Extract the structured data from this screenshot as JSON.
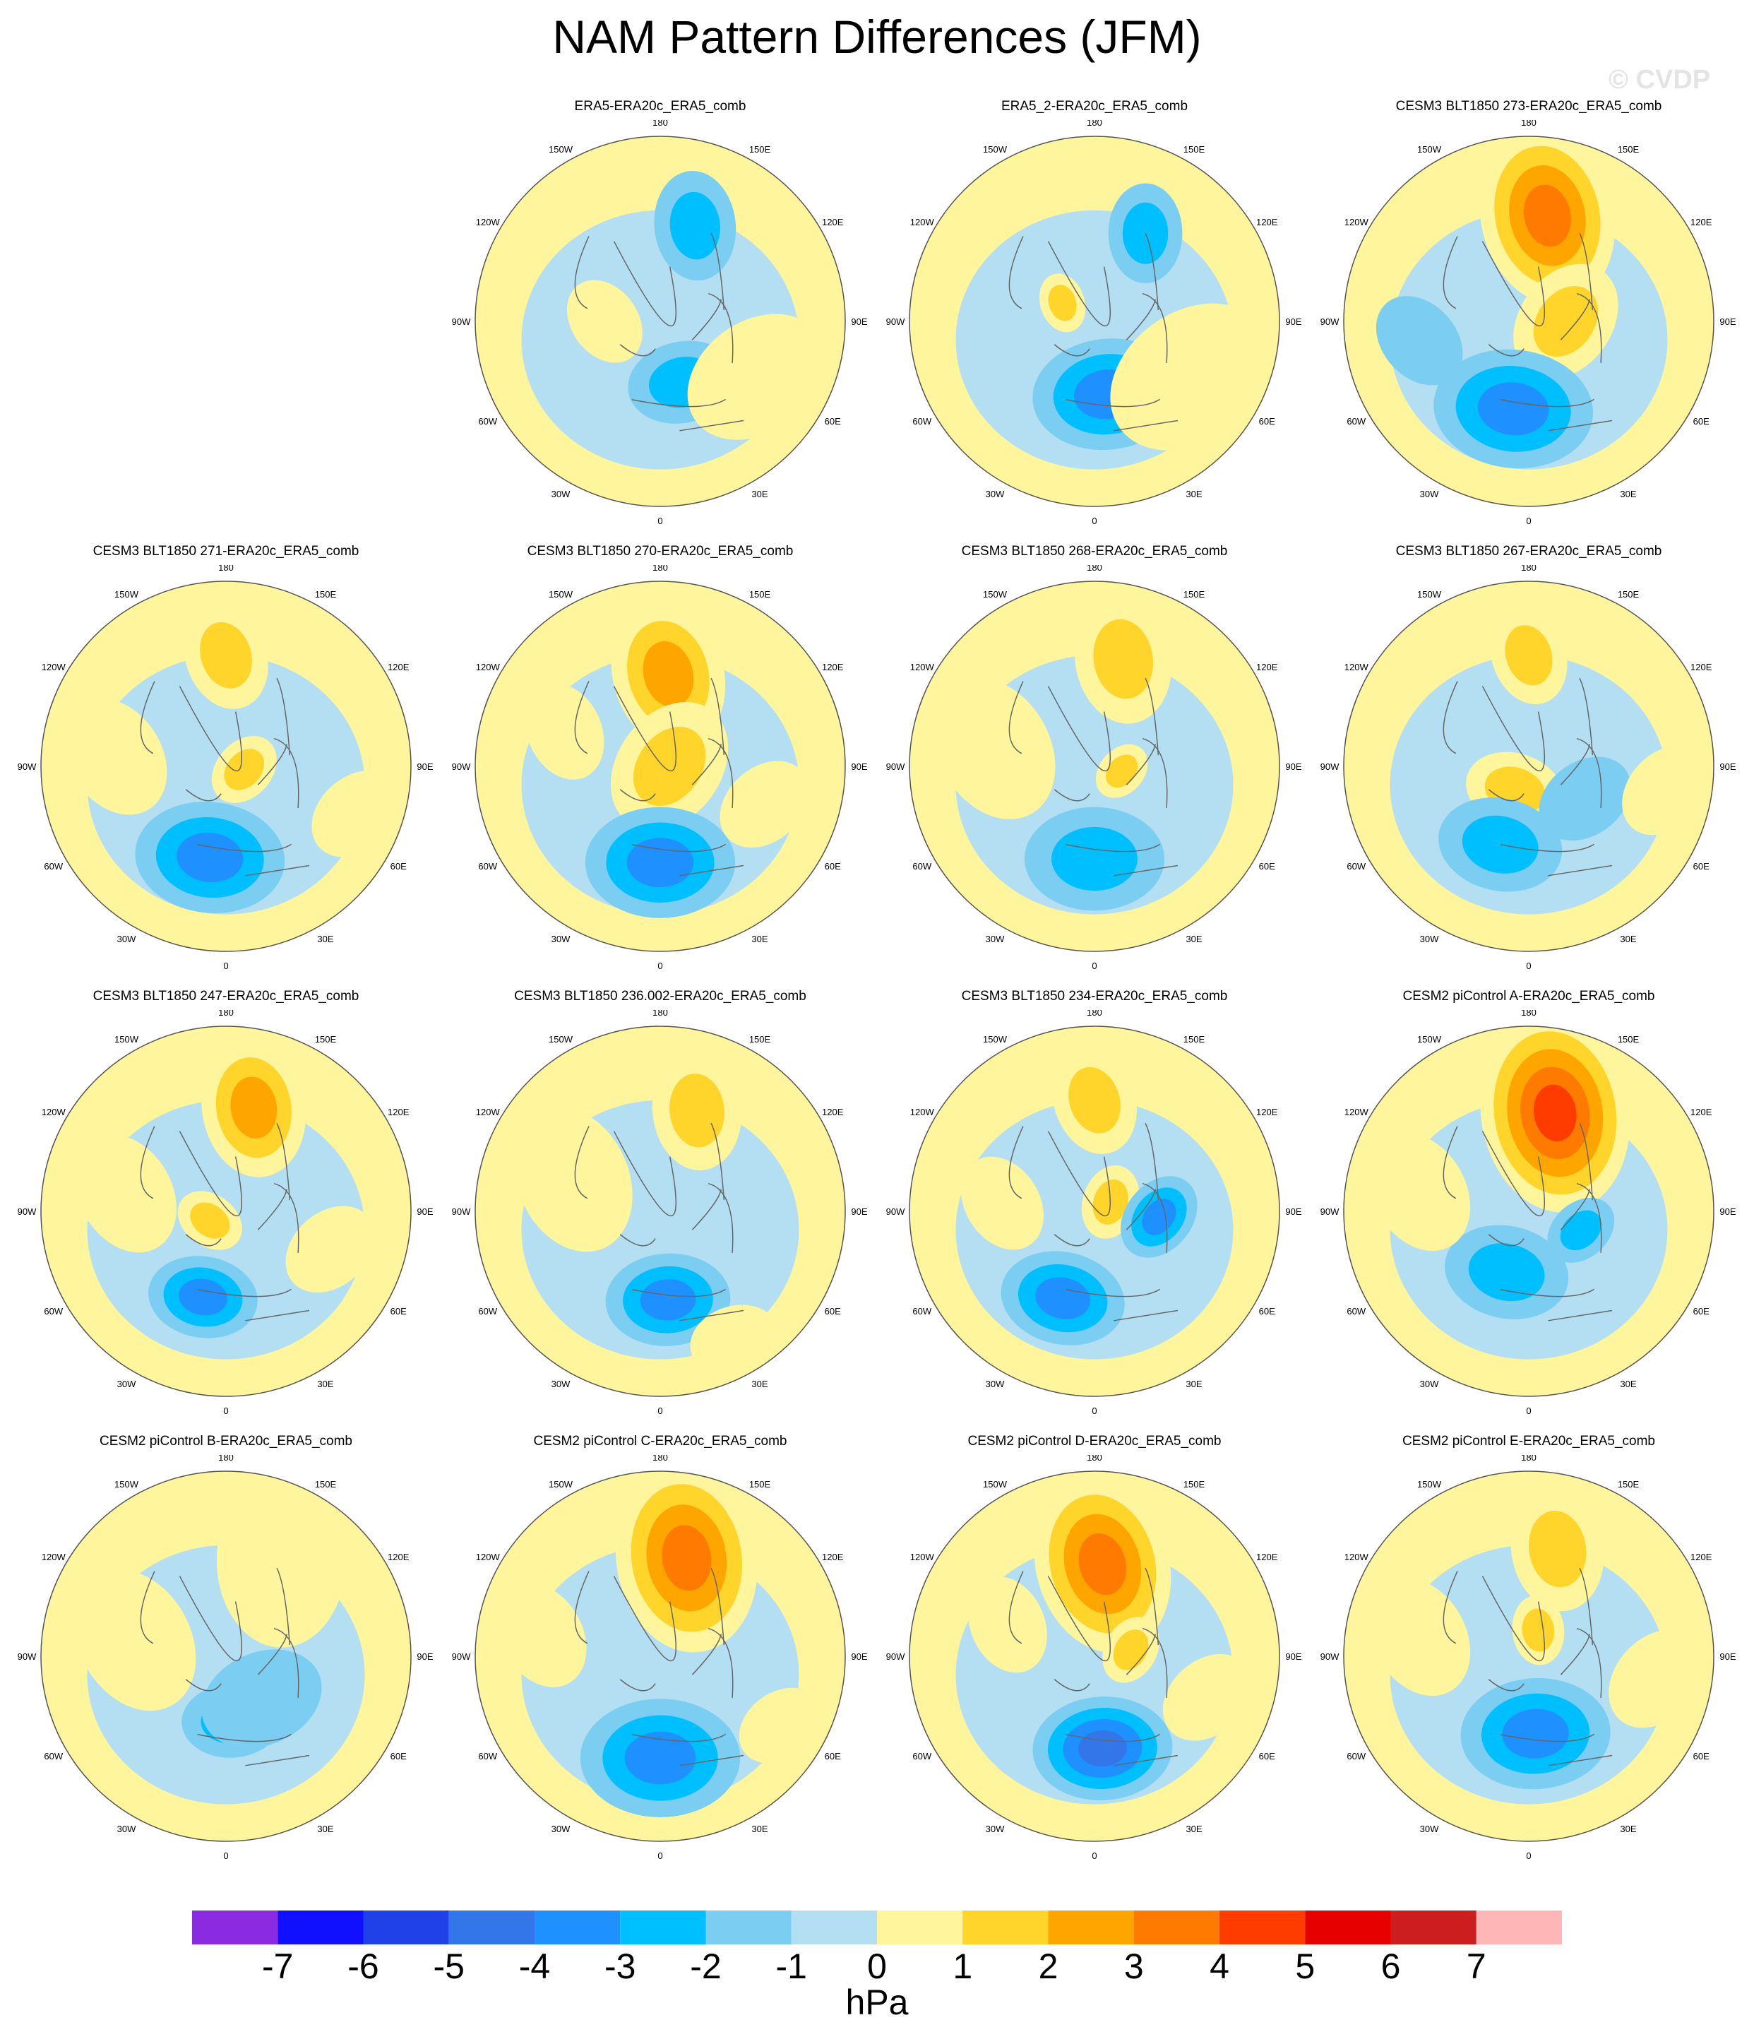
{
  "title": "NAM Pattern Differences (JFM)",
  "watermark": "© CVDP",
  "chart_data": {
    "type": "heatmap",
    "title": "NAM Pattern Differences (JFM)",
    "projection": "north polar stereographic",
    "units": "hPa",
    "lon_labels": [
      "180",
      "150E",
      "120E",
      "90E",
      "60E",
      "30E",
      "0",
      "30W",
      "60W",
      "90W",
      "120W",
      "150W"
    ],
    "colorbar": {
      "labels": [
        "-7",
        "-6",
        "-5",
        "-4",
        "-3",
        "-2",
        "-1",
        "0",
        "1",
        "2",
        "3",
        "4",
        "5",
        "6",
        "7"
      ],
      "colors": [
        "#8a2be2",
        "#1010ff",
        "#2040e8",
        "#3276ea",
        "#1e90ff",
        "#00bfff",
        "#7ccdf2",
        "#b4dff2",
        "#fff59d",
        "#ffd42b",
        "#ffa500",
        "#ff7a00",
        "#ff3c00",
        "#e60000",
        "#cc1e1e",
        "#ffb6b6"
      ]
    },
    "panels": [
      {
        "title": "ERA5-ERA20c_ERA5_comb",
        "blobs": [
          {
            "lon": 160,
            "r": 0.55,
            "level": -2,
            "size": 0.22
          },
          {
            "lon": 20,
            "r": 0.35,
            "level": -2,
            "size": 0.22
          },
          {
            "lon": 60,
            "r": 0.6,
            "level": 1,
            "size": 0.3
          },
          {
            "lon": -90,
            "r": 0.3,
            "level": 1,
            "size": 0.18
          }
        ]
      },
      {
        "title": "ERA5_2-ERA20c_ERA5_comb",
        "blobs": [
          {
            "lon": 150,
            "r": 0.55,
            "level": -2,
            "size": 0.2
          },
          {
            "lon": 10,
            "r": 0.4,
            "level": -3,
            "size": 0.3
          },
          {
            "lon": -120,
            "r": 0.2,
            "level": 2,
            "size": 0.12
          },
          {
            "lon": 60,
            "r": 0.6,
            "level": 1,
            "size": 0.35
          }
        ]
      },
      {
        "title": "CESM3 BLT1850 273-ERA20c_ERA5_comb",
        "blobs": [
          {
            "lon": 170,
            "r": 0.58,
            "level": 4,
            "size": 0.36
          },
          {
            "lon": 90,
            "r": 0.2,
            "level": 2,
            "size": 0.25
          },
          {
            "lon": -10,
            "r": 0.48,
            "level": -3,
            "size": 0.32
          },
          {
            "lon": -80,
            "r": 0.6,
            "level": -1,
            "size": 0.2
          }
        ]
      },
      {
        "title": "CESM3 BLT1850 271-ERA20c_ERA5_comb",
        "blobs": [
          {
            "lon": 180,
            "r": 0.6,
            "level": 2,
            "size": 0.22
          },
          {
            "lon": 80,
            "r": 0.1,
            "level": 2,
            "size": 0.15
          },
          {
            "lon": -10,
            "r": 0.5,
            "level": -3,
            "size": 0.3
          },
          {
            "lon": -95,
            "r": 0.6,
            "level": 1,
            "size": 0.25
          },
          {
            "lon": 70,
            "r": 0.75,
            "level": 1,
            "size": 0.2
          }
        ]
      },
      {
        "title": "CESM3 BLT1850 270-ERA20c_ERA5_comb",
        "blobs": [
          {
            "lon": 175,
            "r": 0.5,
            "level": 3,
            "size": 0.3
          },
          {
            "lon": 90,
            "r": 0.05,
            "level": 2,
            "size": 0.28
          },
          {
            "lon": 0,
            "r": 0.52,
            "level": -3,
            "size": 0.3
          },
          {
            "lon": -110,
            "r": 0.55,
            "level": 1,
            "size": 0.2
          },
          {
            "lon": 70,
            "r": 0.6,
            "level": 1,
            "size": 0.2
          }
        ]
      },
      {
        "title": "CESM3 BLT1850 268-ERA20c_ERA5_comb",
        "blobs": [
          {
            "lon": 165,
            "r": 0.6,
            "level": 2,
            "size": 0.26
          },
          {
            "lon": 80,
            "r": 0.15,
            "level": 2,
            "size": 0.12
          },
          {
            "lon": 0,
            "r": 0.5,
            "level": -2,
            "size": 0.28
          },
          {
            "lon": -100,
            "r": 0.55,
            "level": 1,
            "size": 0.3
          }
        ]
      },
      {
        "title": "CESM3 BLT1850 267-ERA20c_ERA5_comb",
        "blobs": [
          {
            "lon": 180,
            "r": 0.6,
            "level": 2,
            "size": 0.2
          },
          {
            "lon": -30,
            "r": 0.15,
            "level": 2,
            "size": 0.2
          },
          {
            "lon": -20,
            "r": 0.45,
            "level": -2,
            "size": 0.25
          },
          {
            "lon": 60,
            "r": 0.35,
            "level": -1,
            "size": 0.2
          },
          {
            "lon": 80,
            "r": 0.75,
            "level": 1,
            "size": 0.2
          }
        ]
      },
      {
        "title": "CESM3 BLT1850 247-ERA20c_ERA5_comb",
        "blobs": [
          {
            "lon": 165,
            "r": 0.58,
            "level": 3,
            "size": 0.28
          },
          {
            "lon": -60,
            "r": 0.1,
            "level": 2,
            "size": 0.14
          },
          {
            "lon": -15,
            "r": 0.48,
            "level": -3,
            "size": 0.22
          },
          {
            "lon": 70,
            "r": 0.6,
            "level": 1,
            "size": 0.2
          },
          {
            "lon": -100,
            "r": 0.55,
            "level": 1,
            "size": 0.25
          }
        ]
      },
      {
        "title": "CESM3 BLT1850 236.002-ERA20c_ERA5_comb",
        "blobs": [
          {
            "lon": 160,
            "r": 0.58,
            "level": 2,
            "size": 0.24
          },
          {
            "lon": 5,
            "r": 0.48,
            "level": -3,
            "size": 0.25
          },
          {
            "lon": -110,
            "r": 0.5,
            "level": 1,
            "size": 0.3
          },
          {
            "lon": 30,
            "r": 0.8,
            "level": 1,
            "size": 0.18
          }
        ]
      },
      {
        "title": "CESM3 BLT1850 234-ERA20c_ERA5_comb",
        "blobs": [
          {
            "lon": 180,
            "r": 0.6,
            "level": 2,
            "size": 0.22
          },
          {
            "lon": 120,
            "r": 0.1,
            "level": 2,
            "size": 0.15
          },
          {
            "lon": -20,
            "r": 0.5,
            "level": -3,
            "size": 0.25
          },
          {
            "lon": 85,
            "r": 0.35,
            "level": -3,
            "size": 0.18
          },
          {
            "lon": -95,
            "r": 0.5,
            "level": 1,
            "size": 0.2
          }
        ]
      },
      {
        "title": "CESM2 piControl A-ERA20c_ERA5_comb",
        "blobs": [
          {
            "lon": 165,
            "r": 0.55,
            "level": 5,
            "size": 0.4
          },
          {
            "lon": -20,
            "r": 0.35,
            "level": -2,
            "size": 0.25
          },
          {
            "lon": 70,
            "r": 0.3,
            "level": -2,
            "size": 0.15
          },
          {
            "lon": -100,
            "r": 0.6,
            "level": 1,
            "size": 0.25
          }
        ]
      },
      {
        "title": "CESM2 piControl B-ERA20c_ERA5_comb",
        "blobs": [
          {
            "lon": 5,
            "r": 0.35,
            "level": -2,
            "size": 0.2
          },
          {
            "lon": 40,
            "r": 0.3,
            "level": -1,
            "size": 0.25
          },
          {
            "lon": 150,
            "r": 0.6,
            "level": 1,
            "size": 0.35
          },
          {
            "lon": -100,
            "r": 0.5,
            "level": 1,
            "size": 0.3
          }
        ]
      },
      {
        "title": "CESM2 piControl C-ERA20c_ERA5_comb",
        "blobs": [
          {
            "lon": 165,
            "r": 0.55,
            "level": 4,
            "size": 0.38
          },
          {
            "lon": 0,
            "r": 0.55,
            "level": -3,
            "size": 0.32
          },
          {
            "lon": 60,
            "r": 0.75,
            "level": 1,
            "size": 0.18
          },
          {
            "lon": -100,
            "r": 0.65,
            "level": 1,
            "size": 0.22
          }
        ]
      },
      {
        "title": "CESM2 piControl D-ERA20c_ERA5_comb",
        "blobs": [
          {
            "lon": 175,
            "r": 0.5,
            "level": 4,
            "size": 0.36
          },
          {
            "lon": 100,
            "r": 0.2,
            "level": 2,
            "size": 0.14
          },
          {
            "lon": 5,
            "r": 0.5,
            "level": -4,
            "size": 0.28
          },
          {
            "lon": 70,
            "r": 0.65,
            "level": 1,
            "size": 0.2
          },
          {
            "lon": -110,
            "r": 0.5,
            "level": 1,
            "size": 0.2
          }
        ]
      },
      {
        "title": "CESM2 piControl E-ERA20c_ERA5_comb",
        "blobs": [
          {
            "lon": 165,
            "r": 0.6,
            "level": 2,
            "size": 0.25
          },
          {
            "lon": 160,
            "r": 0.15,
            "level": 2,
            "size": 0.14
          },
          {
            "lon": 5,
            "r": 0.42,
            "level": -3,
            "size": 0.3
          },
          {
            "lon": 80,
            "r": 0.7,
            "level": 1,
            "size": 0.22
          },
          {
            "lon": -100,
            "r": 0.6,
            "level": 1,
            "size": 0.25
          }
        ]
      }
    ]
  }
}
